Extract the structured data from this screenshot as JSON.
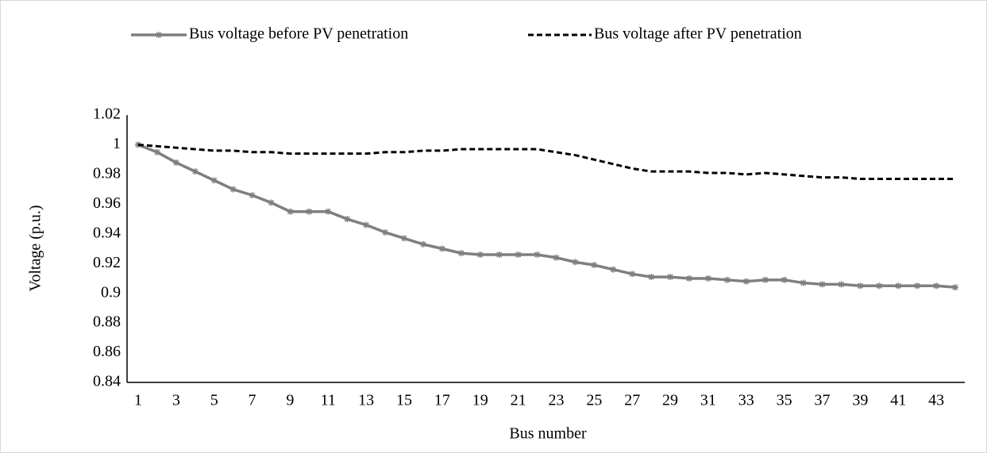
{
  "chart_data": {
    "type": "line",
    "x_label": "Bus number",
    "y_label": "Voltage (p.u.)",
    "categories": [
      "1",
      null,
      "3",
      null,
      "5",
      null,
      "7",
      null,
      "9",
      null,
      "11",
      null,
      "13",
      null,
      "15",
      null,
      "17",
      null,
      "19",
      null,
      "21",
      null,
      "23",
      null,
      "25",
      null,
      "27",
      null,
      "29",
      null,
      "31",
      null,
      "33",
      null,
      "35",
      null,
      "37",
      null,
      "39",
      null,
      "41",
      null,
      "43",
      null
    ],
    "series": [
      {
        "name": "Bus voltage before PV penetration",
        "color": "#7f7f7f",
        "style": "solid",
        "marker": "asterisk",
        "values": [
          1.0,
          0.995,
          0.988,
          0.982,
          0.976,
          0.97,
          0.966,
          0.961,
          0.955,
          0.955,
          0.955,
          0.95,
          0.946,
          0.941,
          0.937,
          0.933,
          0.93,
          0.927,
          0.926,
          0.926,
          0.926,
          0.926,
          0.924,
          0.921,
          0.919,
          0.916,
          0.913,
          0.911,
          0.911,
          0.91,
          0.91,
          0.909,
          0.908,
          0.909,
          0.909,
          0.907,
          0.906,
          0.906,
          0.905,
          0.905,
          0.905,
          0.905,
          0.905,
          0.904
        ]
      },
      {
        "name": "Bus voltage after PV penetration",
        "color": "#000000",
        "style": "dashed",
        "marker": "none",
        "values": [
          1.0,
          0.999,
          0.998,
          0.997,
          0.996,
          0.996,
          0.995,
          0.995,
          0.994,
          0.994,
          0.994,
          0.994,
          0.994,
          0.995,
          0.995,
          0.996,
          0.996,
          0.997,
          0.997,
          0.997,
          0.997,
          0.997,
          0.995,
          0.993,
          0.99,
          0.987,
          0.984,
          0.982,
          0.982,
          0.982,
          0.981,
          0.981,
          0.98,
          0.981,
          0.98,
          0.979,
          0.978,
          0.978,
          0.977,
          0.977,
          0.977,
          0.977,
          0.977,
          0.977
        ]
      }
    ],
    "ylim": [
      0.84,
      1.02
    ],
    "yticks": [
      0.84,
      0.86,
      0.88,
      0.9,
      0.92,
      0.94,
      0.96,
      0.98,
      1,
      1.02
    ],
    "grid": false,
    "legend": "top"
  }
}
